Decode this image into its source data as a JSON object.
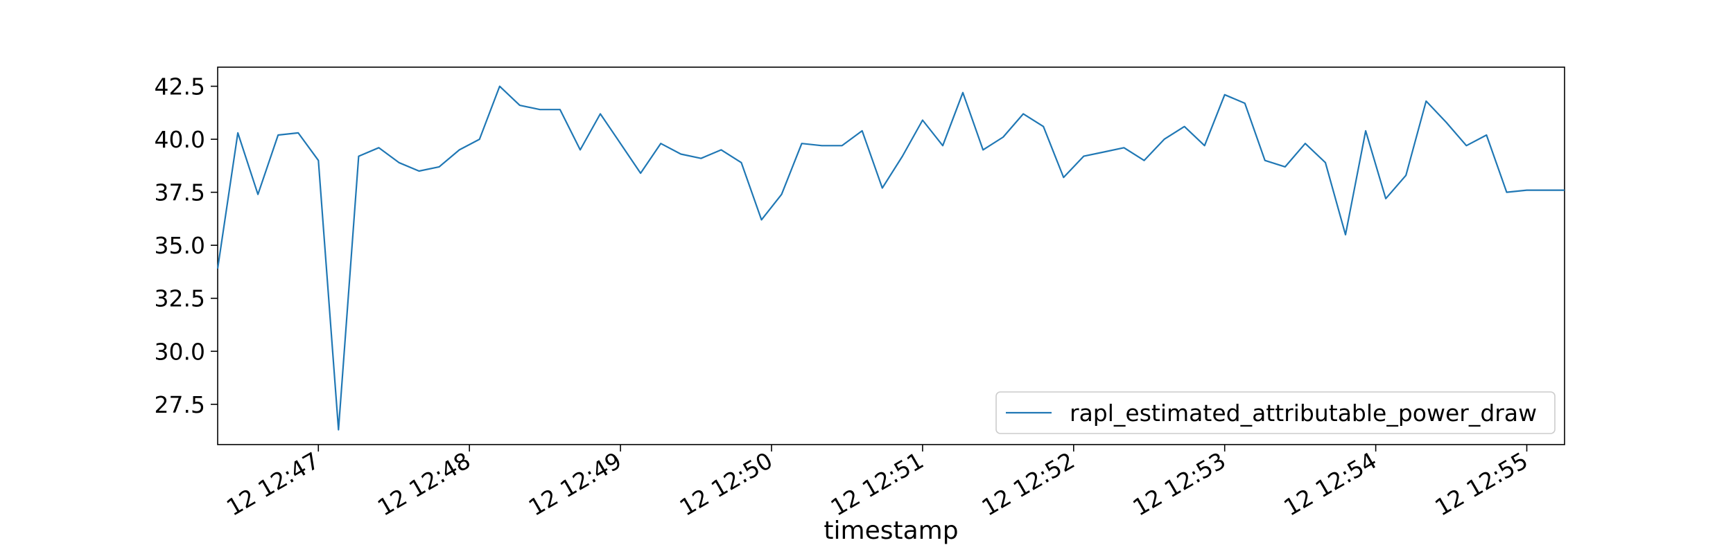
{
  "chart_data": {
    "type": "line",
    "xlabel": "timestamp",
    "ylabel": "",
    "xlim": [
      "12:46:20",
      "12:55:15"
    ],
    "ylim": [
      25.6,
      43.4
    ],
    "grid": false,
    "legend_placement": "lower right",
    "x_ticks": [
      {
        "t": "12:47:00",
        "label": "12 12:47"
      },
      {
        "t": "12:48:00",
        "label": "12 12:48"
      },
      {
        "t": "12:49:00",
        "label": "12 12:49"
      },
      {
        "t": "12:50:00",
        "label": "12 12:50"
      },
      {
        "t": "12:51:00",
        "label": "12 12:51"
      },
      {
        "t": "12:52:00",
        "label": "12 12:52"
      },
      {
        "t": "12:53:00",
        "label": "12 12:53"
      },
      {
        "t": "12:54:00",
        "label": "12 12:54"
      },
      {
        "t": "12:55:00",
        "label": "12 12:55"
      }
    ],
    "y_ticks": [
      {
        "v": 27.5,
        "label": "27.5"
      },
      {
        "v": 30.0,
        "label": "30.0"
      },
      {
        "v": 32.5,
        "label": "32.5"
      },
      {
        "v": 35.0,
        "label": "35.0"
      },
      {
        "v": 37.5,
        "label": "37.5"
      },
      {
        "v": 40.0,
        "label": "40.0"
      },
      {
        "v": 42.5,
        "label": "42.5"
      }
    ],
    "series": [
      {
        "name": "rapl_estimated_attributable_power_draw",
        "color": "#1f77b4",
        "x": [
          "12:46:20",
          "12:46:28",
          "12:46:36",
          "12:46:44",
          "12:46:52",
          "12:47:00",
          "12:47:08",
          "12:47:16",
          "12:47:24",
          "12:47:32",
          "12:47:40",
          "12:47:48",
          "12:47:56",
          "12:48:04",
          "12:48:12",
          "12:48:20",
          "12:48:28",
          "12:48:36",
          "12:48:44",
          "12:48:52",
          "12:49:00",
          "12:49:08",
          "12:49:16",
          "12:49:24",
          "12:49:32",
          "12:49:40",
          "12:49:48",
          "12:49:56",
          "12:50:04",
          "12:50:12",
          "12:50:20",
          "12:50:28",
          "12:50:36",
          "12:50:44",
          "12:50:52",
          "12:51:00",
          "12:51:08",
          "12:51:16",
          "12:51:24",
          "12:51:32",
          "12:51:40",
          "12:51:48",
          "12:51:56",
          "12:52:04",
          "12:52:12",
          "12:52:20",
          "12:52:28",
          "12:52:36",
          "12:52:44",
          "12:52:52",
          "12:53:00",
          "12:53:08",
          "12:53:16",
          "12:53:24",
          "12:53:32",
          "12:53:40",
          "12:53:48",
          "12:53:56",
          "12:54:04",
          "12:54:12",
          "12:54:20",
          "12:54:28",
          "12:54:36",
          "12:54:44",
          "12:54:52",
          "12:55:00",
          "12:55:08",
          "12:55:15"
        ],
        "y": [
          33.9,
          40.3,
          37.4,
          40.2,
          40.3,
          39.0,
          26.3,
          39.2,
          39.6,
          38.9,
          38.5,
          38.7,
          39.5,
          40.0,
          42.5,
          41.6,
          41.4,
          41.4,
          39.5,
          41.2,
          39.8,
          38.4,
          39.8,
          39.3,
          39.1,
          39.5,
          38.9,
          36.2,
          37.4,
          39.8,
          39.7,
          39.7,
          40.4,
          37.7,
          39.2,
          40.9,
          39.7,
          42.2,
          39.5,
          40.1,
          41.2,
          40.6,
          38.2,
          39.2,
          39.4,
          39.6,
          39.0,
          40.0,
          40.6,
          39.7,
          42.1,
          41.7,
          39.0,
          38.7,
          39.8,
          38.9,
          35.5,
          40.4,
          37.2,
          38.3,
          41.8,
          40.8,
          39.7,
          40.2,
          37.5,
          37.6,
          37.6,
          37.6
        ]
      }
    ]
  }
}
